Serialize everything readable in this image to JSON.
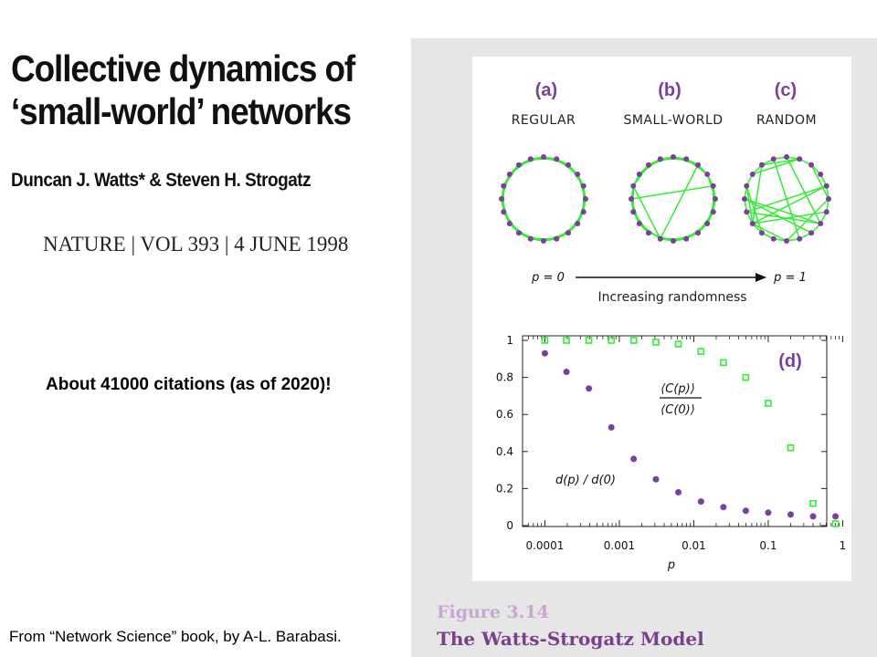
{
  "paper": {
    "title_line1": "Collective dynamics of",
    "title_line2": "‘small-world’ networks",
    "authors": "Duncan J. Watts* & Steven H. Strogatz",
    "journal": "NATURE | VOL 393 | 4 JUNE 1998"
  },
  "citations": "About 41000 citations (as of 2020)!",
  "source_note": "From “Network Science” book, by A-L. Barabasi.",
  "figure": {
    "number": "Figure 3.14",
    "title": "The Watts-Strogatz Model",
    "panels": [
      {
        "label": "(a)",
        "name": "REGULAR"
      },
      {
        "label": "(b)",
        "name": "SMALL-WORLD"
      },
      {
        "label": "(c)",
        "name": "RANDOM"
      }
    ],
    "arrow": {
      "left": "p = 0",
      "right": "p = 1",
      "caption": "Increasing randomness"
    },
    "colors": {
      "edge": "#33ee33",
      "node": "#7b3f9e",
      "label": "#7b3f9e",
      "panel_bg": "#e6e6e6"
    }
  },
  "chart_data": {
    "type": "scatter",
    "panel_label": "(d)",
    "xlabel": "p",
    "xscale": "log",
    "xlim": [
      5e-05,
      1
    ],
    "ylim": [
      0,
      1
    ],
    "xticks": [
      "0.0001",
      "0.001",
      "0.01",
      "0.1",
      "1"
    ],
    "yticks": [
      "0",
      "0.2",
      "0.4",
      "0.6",
      "0.8",
      "1"
    ],
    "series": [
      {
        "name": "⟨C(p)⟩ / ⟨C(0)⟩",
        "label_num": "⟨C(p)⟩",
        "label_den": "⟨C(0)⟩",
        "marker": "open-square",
        "color": "#33ee33",
        "x": [
          0.0001,
          0.000195,
          0.00039,
          0.00078,
          0.00156,
          0.0031,
          0.0062,
          0.0125,
          0.025,
          0.05,
          0.1,
          0.2,
          0.4,
          0.8
        ],
        "y": [
          1.0,
          1.0,
          1.0,
          1.0,
          1.0,
          0.99,
          0.98,
          0.94,
          0.88,
          0.8,
          0.66,
          0.42,
          0.12,
          0.01
        ]
      },
      {
        "name": "d(p) / d(0)",
        "marker": "filled-circle",
        "color": "#7b3f9e",
        "x": [
          0.0001,
          0.000195,
          0.00039,
          0.00078,
          0.00156,
          0.0031,
          0.0062,
          0.0125,
          0.025,
          0.05,
          0.1,
          0.2,
          0.4,
          0.8
        ],
        "y": [
          0.93,
          0.83,
          0.74,
          0.53,
          0.36,
          0.25,
          0.18,
          0.13,
          0.1,
          0.08,
          0.07,
          0.06,
          0.05,
          0.05
        ]
      }
    ]
  }
}
